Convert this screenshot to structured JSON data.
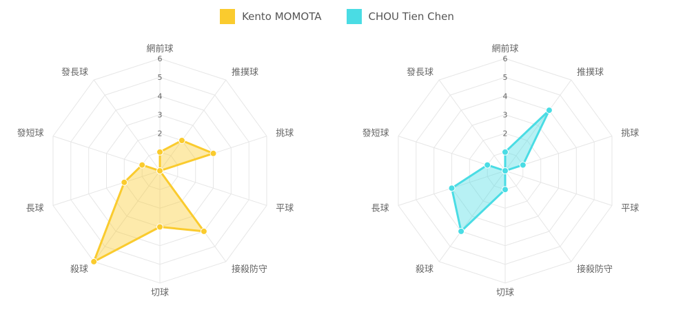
{
  "legend": [
    {
      "name": "Kento MOMOTA",
      "color": "#FACB2E"
    },
    {
      "name": "CHOU Tien Chen",
      "color": "#4ADCE4"
    }
  ],
  "chart_data": [
    {
      "type": "radar",
      "categories": [
        "網前球",
        "推撲球",
        "挑球",
        "平球",
        "接殺防守",
        "切球",
        "殺球",
        "長球",
        "發短球",
        "發長球"
      ],
      "rlim": [
        0,
        6
      ],
      "ticks": [
        1,
        2,
        3,
        4,
        5,
        6
      ],
      "series": [
        {
          "name": "Kento MOMOTA",
          "color": "#FACB2E",
          "values": [
            1,
            2,
            3,
            0,
            4,
            3,
            6,
            2,
            1,
            0
          ]
        }
      ]
    },
    {
      "type": "radar",
      "categories": [
        "網前球",
        "推撲球",
        "挑球",
        "平球",
        "接殺防守",
        "切球",
        "殺球",
        "長球",
        "發短球",
        "發長球"
      ],
      "rlim": [
        0,
        6
      ],
      "ticks": [
        1,
        2,
        3,
        4,
        5,
        6
      ],
      "series": [
        {
          "name": "CHOU Tien Chen",
          "color": "#4ADCE4",
          "values": [
            1,
            4,
            1,
            0,
            0,
            1,
            4,
            3,
            1,
            0
          ]
        }
      ]
    }
  ]
}
